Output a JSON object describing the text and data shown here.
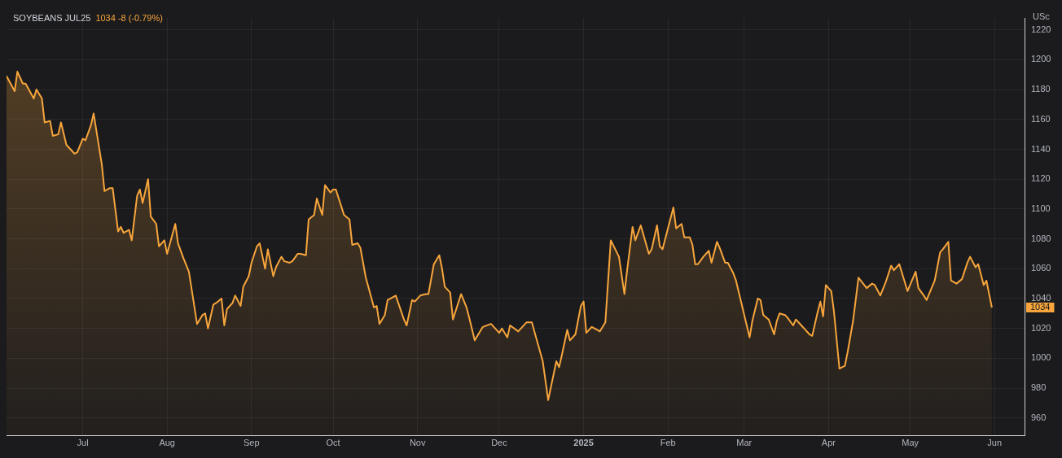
{
  "chart_data": {
    "type": "area",
    "title": "SOYBEANS JUL25",
    "subtitle": "1034 -8 (-0.79%)",
    "ylabel": "USc",
    "x": [
      "2024-06-03",
      "2024-06-06",
      "2024-06-07",
      "2024-06-09",
      "2024-06-10",
      "2024-06-13",
      "2024-06-14",
      "2024-06-16",
      "2024-06-17",
      "2024-06-19",
      "2024-06-20",
      "2024-06-22",
      "2024-06-23",
      "2024-06-25",
      "2024-06-28",
      "2024-06-29",
      "2024-07-01",
      "2024-07-02",
      "2024-07-04",
      "2024-07-05",
      "2024-07-08",
      "2024-07-09",
      "2024-07-11",
      "2024-07-12",
      "2024-07-14",
      "2024-07-15",
      "2024-07-16",
      "2024-07-18",
      "2024-07-19",
      "2024-07-21",
      "2024-07-22",
      "2024-07-23",
      "2024-07-25",
      "2024-07-26",
      "2024-07-28",
      "2024-07-29",
      "2024-07-31",
      "2024-08-01",
      "2024-08-04",
      "2024-08-05",
      "2024-08-07",
      "2024-08-09",
      "2024-08-12",
      "2024-08-14",
      "2024-08-15",
      "2024-08-16",
      "2024-08-18",
      "2024-08-19",
      "2024-08-21",
      "2024-08-22",
      "2024-08-23",
      "2024-08-25",
      "2024-08-26",
      "2024-08-28",
      "2024-08-29",
      "2024-08-31",
      "2024-09-01",
      "2024-09-03",
      "2024-09-04",
      "2024-09-06",
      "2024-09-07",
      "2024-09-09",
      "2024-09-10",
      "2024-09-12",
      "2024-09-13",
      "2024-09-15",
      "2024-09-16",
      "2024-09-18",
      "2024-09-19",
      "2024-09-21",
      "2024-09-22",
      "2024-09-24",
      "2024-09-25",
      "2024-09-27",
      "2024-09-28",
      "2024-09-30",
      "2024-10-01",
      "2024-10-02",
      "2024-10-05",
      "2024-10-07",
      "2024-10-08",
      "2024-10-10",
      "2024-10-11",
      "2024-10-13",
      "2024-10-16",
      "2024-10-17",
      "2024-10-18",
      "2024-10-20",
      "2024-10-21",
      "2024-10-24",
      "2024-10-27",
      "2024-10-28",
      "2024-10-30",
      "2024-10-31",
      "2024-11-02",
      "2024-11-04",
      "2024-11-05",
      "2024-11-07",
      "2024-11-09",
      "2024-11-10",
      "2024-11-11",
      "2024-11-13",
      "2024-11-14",
      "2024-11-17",
      "2024-11-19",
      "2024-11-20",
      "2024-11-22",
      "2024-11-24",
      "2024-11-25",
      "2024-11-28",
      "2024-12-01",
      "2024-12-02",
      "2024-12-04",
      "2024-12-05",
      "2024-12-08",
      "2024-12-11",
      "2024-12-13",
      "2024-12-15",
      "2024-12-17",
      "2024-12-19",
      "2024-12-22",
      "2024-12-23",
      "2024-12-24",
      "2024-12-26",
      "2024-12-27",
      "2024-12-29",
      "2024-12-31",
      "2025-01-01",
      "2025-01-02",
      "2025-01-04",
      "2025-01-07",
      "2025-01-09",
      "2025-01-11",
      "2025-01-14",
      "2025-01-16",
      "2025-01-17",
      "2025-01-19",
      "2025-01-20",
      "2025-01-22",
      "2025-01-25",
      "2025-01-26",
      "2025-01-28",
      "2025-01-29",
      "2025-01-30",
      "2025-02-03",
      "2025-02-04",
      "2025-02-06",
      "2025-02-07",
      "2025-02-09",
      "2025-02-10",
      "2025-02-11",
      "2025-02-12",
      "2025-02-14",
      "2025-02-16",
      "2025-02-17",
      "2025-02-19",
      "2025-02-20",
      "2025-02-22",
      "2025-02-23",
      "2025-02-25",
      "2025-02-26",
      "2025-03-03",
      "2025-03-04",
      "2025-03-06",
      "2025-03-07",
      "2025-03-08",
      "2025-03-10",
      "2025-03-12",
      "2025-03-13",
      "2025-03-14",
      "2025-03-16",
      "2025-03-17",
      "2025-03-19",
      "2025-03-20",
      "2025-03-22",
      "2025-03-23",
      "2025-03-25",
      "2025-03-26",
      "2025-03-28",
      "2025-03-29",
      "2025-03-30",
      "2025-03-31",
      "2025-04-02",
      "2025-04-03",
      "2025-04-05",
      "2025-04-07",
      "2025-04-08",
      "2025-04-10",
      "2025-04-12",
      "2025-04-15",
      "2025-04-17",
      "2025-04-18",
      "2025-04-20",
      "2025-04-22",
      "2025-04-24",
      "2025-04-25",
      "2025-04-27",
      "2025-04-30",
      "2025-05-03",
      "2025-05-04",
      "2025-05-06",
      "2025-05-07",
      "2025-05-10",
      "2025-05-12",
      "2025-05-13",
      "2025-05-15",
      "2025-05-16",
      "2025-05-18",
      "2025-05-20",
      "2025-05-22",
      "2025-05-23",
      "2025-05-25",
      "2025-05-26",
      "2025-05-28",
      "2025-05-29",
      "2025-05-31"
    ],
    "series": [
      {
        "color": "#f7a53c",
        "values": [
          1189,
          1179,
          1192,
          1184,
          1184,
          1174,
          1180,
          1174,
          1158,
          1159,
          1149,
          1150,
          1158,
          1143,
          1137,
          1138,
          1147,
          1146,
          1156,
          1164,
          1130,
          1112,
          1114,
          1114,
          1085,
          1088,
          1084,
          1086,
          1079,
          1109,
          1113,
          1104,
          1120,
          1095,
          1090,
          1075,
          1079,
          1070,
          1090,
          1077,
          1067,
          1058,
          1023,
          1029,
          1030,
          1020,
          1036,
          1037,
          1040,
          1022,
          1033,
          1037,
          1042,
          1035,
          1048,
          1055,
          1064,
          1075,
          1077,
          1060,
          1073,
          1055,
          1061,
          1068,
          1065,
          1064,
          1065,
          1070,
          1070,
          1069,
          1093,
          1096,
          1107,
          1096,
          1116,
          1111,
          1113,
          1113,
          1096,
          1093,
          1076,
          1077,
          1074,
          1054,
          1034,
          1035,
          1023,
          1029,
          1039,
          1042,
          1026,
          1022,
          1039,
          1038,
          1042,
          1043,
          1043,
          1063,
          1069,
          1060,
          1048,
          1044,
          1026,
          1043,
          1034,
          1027,
          1012,
          1018,
          1021,
          1023,
          1017,
          1020,
          1014,
          1022,
          1018,
          1024,
          1024,
          1011,
          998,
          972,
          998,
          994,
          1002,
          1019,
          1012,
          1016,
          1035,
          1038,
          1017,
          1021,
          1018,
          1024,
          1079,
          1068,
          1043,
          1059,
          1088,
          1079,
          1089,
          1070,
          1073,
          1089,
          1075,
          1073,
          1101,
          1087,
          1090,
          1081,
          1081,
          1076,
          1063,
          1063,
          1068,
          1072,
          1064,
          1078,
          1074,
          1064,
          1064,
          1057,
          1052,
          1014,
          1025,
          1040,
          1039,
          1029,
          1026,
          1016,
          1025,
          1030,
          1029,
          1027,
          1022,
          1026,
          1022,
          1020,
          1016,
          1015,
          1031,
          1038,
          1028,
          1049,
          1045,
          1031,
          993,
          995,
          1004,
          1025,
          1054,
          1047,
          1050,
          1049,
          1042,
          1051,
          1062,
          1059,
          1063,
          1045,
          1058,
          1047,
          1042,
          1039,
          1052,
          1071,
          1073,
          1078,
          1052,
          1050,
          1053,
          1064,
          1068,
          1061,
          1063,
          1049,
          1052,
          1034
        ]
      }
    ],
    "xlim": [
      "2024-06-03",
      "2025-06-12"
    ],
    "xticks": [
      {
        "value": "2024-07-01",
        "label": "Jul"
      },
      {
        "value": "2024-08-01",
        "label": "Aug"
      },
      {
        "value": "2024-09-01",
        "label": "Sep"
      },
      {
        "value": "2024-10-01",
        "label": "Oct"
      },
      {
        "value": "2024-11-01",
        "label": "Nov"
      },
      {
        "value": "2024-12-01",
        "label": "Dec"
      },
      {
        "value": "2025-01-01",
        "label": "2025"
      },
      {
        "value": "2025-02-01",
        "label": "Feb"
      },
      {
        "value": "2025-03-01",
        "label": "Mar"
      },
      {
        "value": "2025-04-01",
        "label": "Apr"
      },
      {
        "value": "2025-05-01",
        "label": "May"
      },
      {
        "value": "2025-06-01",
        "label": "Jun"
      }
    ],
    "ylim": [
      948,
      1228
    ],
    "yticks": [
      960,
      980,
      1000,
      1020,
      1040,
      1060,
      1080,
      1100,
      1120,
      1140,
      1160,
      1180,
      1200,
      1220
    ],
    "grid": true,
    "marker": "none",
    "line_style": "solid",
    "annotations": [
      "1034"
    ]
  }
}
